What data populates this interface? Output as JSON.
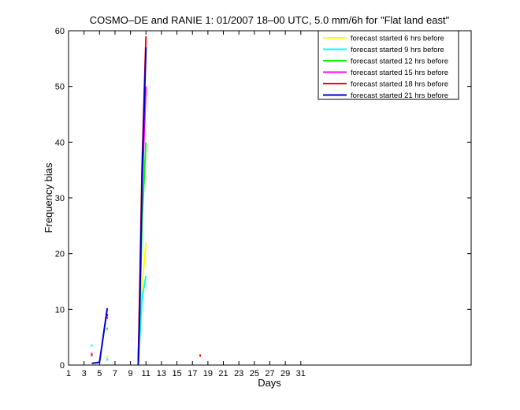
{
  "chart_data": {
    "type": "line",
    "title": "COSMO–DE and RANIE 1: 01/2007 18–00 UTC, 5.0 mm/6h for \"Flat land east\"",
    "xlabel": "Days",
    "ylabel": "Frequency bias",
    "xlim": [
      1,
      53
    ],
    "ylim": [
      0,
      60
    ],
    "xticks": [
      1,
      3,
      5,
      7,
      9,
      11,
      13,
      15,
      17,
      19,
      21,
      23,
      25,
      27,
      29,
      31
    ],
    "yticks": [
      0,
      10,
      20,
      30,
      40,
      50,
      60
    ],
    "grid": false,
    "legend_position": "top-right",
    "series": [
      {
        "name": "forecast started 6 hrs before",
        "color": "#ffff00",
        "points": [
          [
            6,
            1.5
          ],
          [
            10,
            0
          ],
          [
            10.2,
            6
          ],
          [
            10.5,
            14
          ],
          [
            11,
            22
          ]
        ]
      },
      {
        "name": "forecast started 9 hrs before",
        "color": "#00ffff",
        "points": [
          [
            4,
            3.5
          ],
          [
            6,
            1.0
          ],
          [
            10,
            0
          ],
          [
            10.2,
            5
          ],
          [
            10.5,
            12
          ],
          [
            11,
            16
          ]
        ]
      },
      {
        "name": "forecast started 12 hrs before",
        "color": "#00ff00",
        "points": [
          [
            6,
            6.5
          ],
          [
            10,
            0
          ],
          [
            10.2,
            10
          ],
          [
            10.5,
            26
          ],
          [
            11,
            40
          ]
        ]
      },
      {
        "name": "forecast started 15 hrs before",
        "color": "#ff00ff",
        "points": [
          [
            4,
            2.0
          ],
          [
            6,
            8.5
          ],
          [
            10,
            0
          ],
          [
            10.2,
            12
          ],
          [
            10.5,
            32
          ],
          [
            11,
            50
          ]
        ]
      },
      {
        "name": "forecast started 18 hrs before",
        "color": "#ff0000",
        "points": [
          [
            4,
            1.8
          ],
          [
            6,
            9.0
          ],
          [
            10,
            0
          ],
          [
            10.2,
            14
          ],
          [
            10.5,
            36
          ],
          [
            11,
            59
          ],
          [
            18,
            1.7
          ]
        ]
      },
      {
        "name": "forecast started 21 hrs before",
        "color": "#0000cc",
        "points": [
          [
            4,
            0.3
          ],
          [
            5,
            0.5
          ],
          [
            6,
            10.2
          ],
          [
            10,
            0
          ],
          [
            10.2,
            10
          ],
          [
            10.5,
            34
          ],
          [
            11,
            57
          ]
        ]
      }
    ]
  }
}
